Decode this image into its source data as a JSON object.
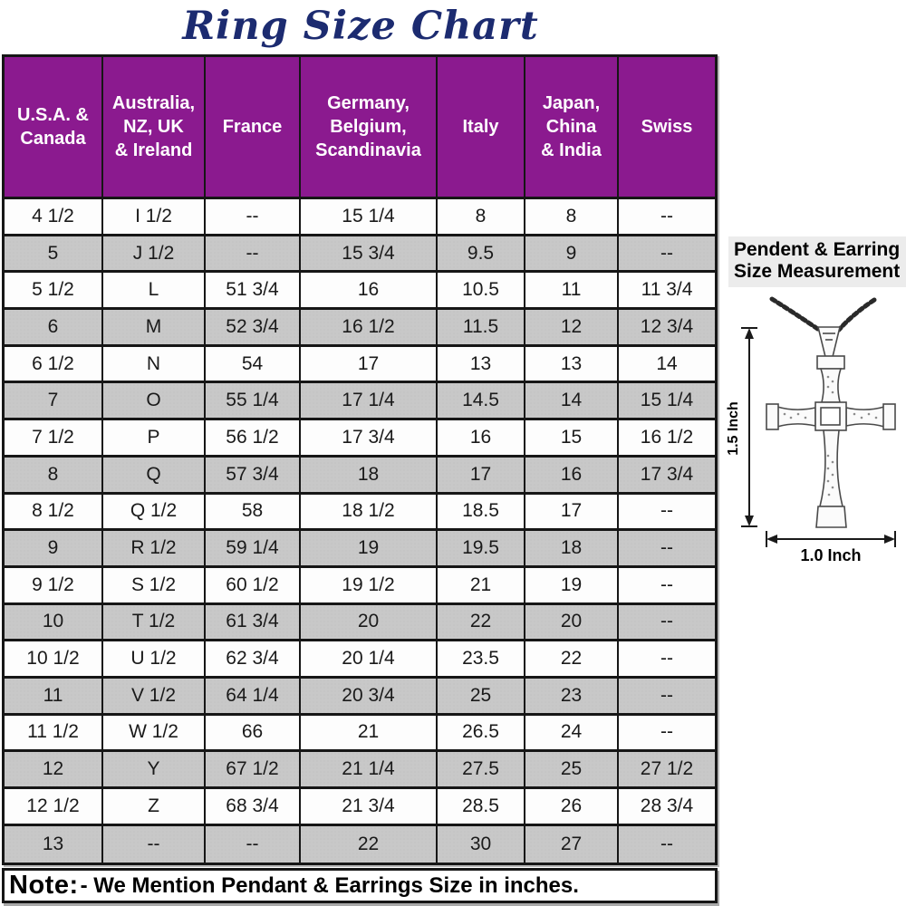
{
  "title": "Ring Size Chart",
  "table": {
    "headers": [
      "U.S.A. &\nCanada",
      "Australia,\nNZ, UK\n& Ireland",
      "France",
      "Germany,\nBelgium,\nScandinavia",
      "Italy",
      "Japan,\nChina\n& India",
      "Swiss"
    ],
    "rows": [
      [
        "4 1/2",
        "I 1/2",
        "--",
        "15 1/4",
        "8",
        "8",
        "--"
      ],
      [
        "5",
        "J 1/2",
        "--",
        "15 3/4",
        "9.5",
        "9",
        "--"
      ],
      [
        "5 1/2",
        "L",
        "51 3/4",
        "16",
        "10.5",
        "11",
        "11 3/4"
      ],
      [
        "6",
        "M",
        "52 3/4",
        "16 1/2",
        "11.5",
        "12",
        "12 3/4"
      ],
      [
        "6 1/2",
        "N",
        "54",
        "17",
        "13",
        "13",
        "14"
      ],
      [
        "7",
        "O",
        "55 1/4",
        "17 1/4",
        "14.5",
        "14",
        "15 1/4"
      ],
      [
        "7 1/2",
        "P",
        "56 1/2",
        "17 3/4",
        "16",
        "15",
        "16 1/2"
      ],
      [
        "8",
        "Q",
        "57 3/4",
        "18",
        "17",
        "16",
        "17 3/4"
      ],
      [
        "8 1/2",
        "Q 1/2",
        "58",
        "18 1/2",
        "18.5",
        "17",
        "--"
      ],
      [
        "9",
        "R 1/2",
        "59 1/4",
        "19",
        "19.5",
        "18",
        "--"
      ],
      [
        "9 1/2",
        "S 1/2",
        "60 1/2",
        "19 1/2",
        "21",
        "19",
        "--"
      ],
      [
        "10",
        "T 1/2",
        "61 3/4",
        "20",
        "22",
        "20",
        "--"
      ],
      [
        "10 1/2",
        "U 1/2",
        "62 3/4",
        "20 1/4",
        "23.5",
        "22",
        "--"
      ],
      [
        "11",
        "V 1/2",
        "64 1/4",
        "20 3/4",
        "25",
        "23",
        "--"
      ],
      [
        "11 1/2",
        "W 1/2",
        "66",
        "21",
        "26.5",
        "24",
        "--"
      ],
      [
        "12",
        "Y",
        "67 1/2",
        "21 1/4",
        "27.5",
        "25",
        "27 1/2"
      ],
      [
        "12 1/2",
        "Z",
        "68 3/4",
        "21 3/4",
        "28.5",
        "26",
        "28 3/4"
      ],
      [
        "13",
        "--",
        "--",
        "22",
        "30",
        "27",
        "--"
      ]
    ]
  },
  "note": {
    "label": "Note:",
    "text": "- We Mention Pendant & Earrings Size in inches."
  },
  "side_panel": {
    "heading_line1": "Pendent & Earring",
    "heading_line2": "Size Measurement",
    "height_label": "1.5 Inch",
    "width_label": "1.0 Inch"
  },
  "colors": {
    "header_bg": "#8b1a8f",
    "header_text": "#ffffff",
    "stripe_row": "#c8c8c8",
    "title_text": "#1c2b70",
    "table_border": "#161616"
  }
}
